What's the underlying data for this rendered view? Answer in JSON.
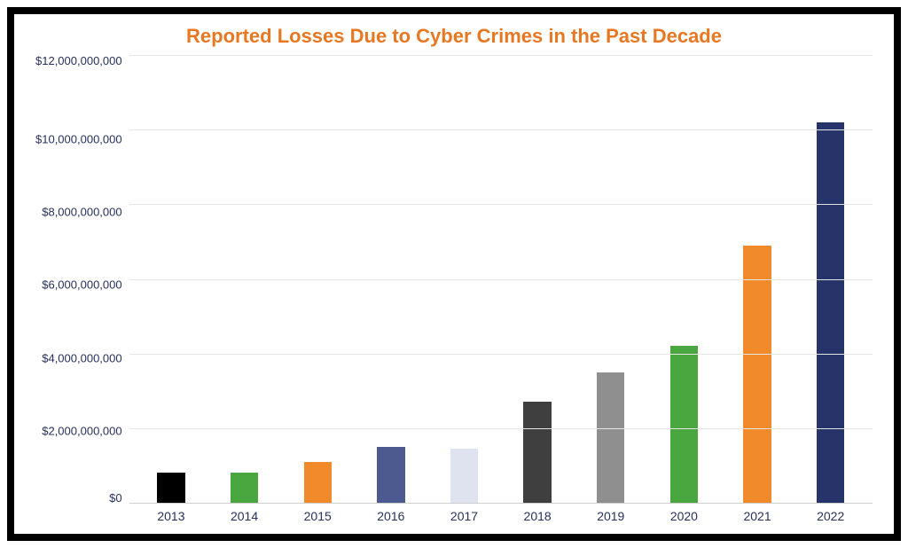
{
  "chart": {
    "type": "bar",
    "title": "Reported Losses Due to Cyber Crimes in the Past Decade",
    "title_color": "#e87722",
    "title_fontsize": 22,
    "background_color": "#ffffff",
    "frame_border_color": "#000000",
    "grid_color": "#e5e5e5",
    "axis_text_color": "#27305f",
    "label_fontsize": 14,
    "ylim": [
      0,
      12000000000
    ],
    "ytick_step": 2000000000,
    "yticks": [
      {
        "value": 12000000000,
        "label": "$12,000,000,000"
      },
      {
        "value": 10000000000,
        "label": "$10,000,000,000"
      },
      {
        "value": 8000000000,
        "label": "$8,000,000,000"
      },
      {
        "value": 6000000000,
        "label": "$6,000,000,000"
      },
      {
        "value": 4000000000,
        "label": "$4,000,000,000"
      },
      {
        "value": 2000000000,
        "label": "$2,000,000,000"
      },
      {
        "value": 0,
        "label": "$0"
      }
    ],
    "categories": [
      "2013",
      "2014",
      "2015",
      "2016",
      "2017",
      "2018",
      "2019",
      "2020",
      "2021",
      "2022"
    ],
    "values": [
      800000000,
      800000000,
      1100000000,
      1500000000,
      1450000000,
      2700000000,
      3500000000,
      4200000000,
      6900000000,
      10200000000
    ],
    "bar_colors": [
      "#000000",
      "#4aa63f",
      "#f08a2b",
      "#4c5a90",
      "#dfe3f0",
      "#3f3f3f",
      "#8f8f8f",
      "#4aa63f",
      "#f08a2b",
      "#27346a"
    ],
    "bar_width": 0.38
  }
}
